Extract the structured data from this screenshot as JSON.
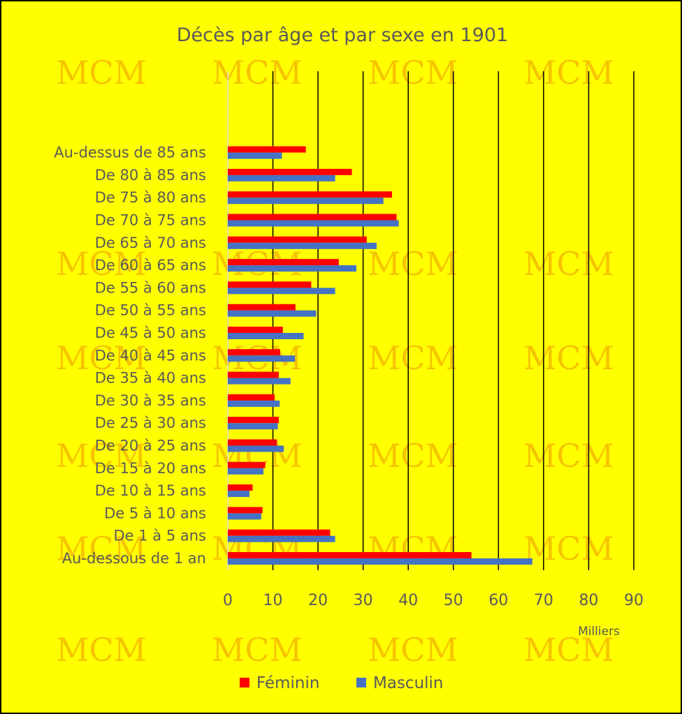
{
  "watermark": "MCM",
  "chart_data": {
    "type": "bar",
    "orientation": "horizontal",
    "title": "Décès par âge et par sexe en 1901",
    "xlabel": "Milliers",
    "xlim": [
      0,
      90
    ],
    "xticks": [
      0,
      10,
      20,
      30,
      40,
      50,
      60,
      70,
      80,
      90
    ],
    "grid": "vertical",
    "legend_position": "bottom",
    "categories": [
      "Au-dessous de 1 an",
      "De 1 à 5 ans",
      "De 5 à 10 ans",
      "De 10 à 15 ans",
      "De 15 à 20 ans",
      "De 20 à 25 ans",
      "De 25 à 30 ans",
      "De 30 à 35 ans",
      "De 35 à 40 ans",
      "De 40 à 45 ans",
      "De 45 à 50 ans",
      "De 50 à 55 ans",
      "De 55 à 60 ans",
      "De 60 à 65 ans",
      "De 65 à 70 ans",
      "De 70 à 75 ans",
      "De 75 à 80 ans",
      "De 80 à 85 ans",
      "Au-dessus de 85 ans"
    ],
    "series": [
      {
        "name": "Féminin",
        "color": "#ff0000",
        "values": [
          54,
          22.7,
          7.7,
          5.5,
          8.3,
          10.9,
          11.3,
          10.4,
          11.3,
          11.6,
          12.2,
          15.0,
          18.5,
          24.6,
          30.8,
          37.4,
          36.4,
          27.5,
          17.3
        ]
      },
      {
        "name": "Masculin",
        "color": "#4472c4",
        "values": [
          67.5,
          23.8,
          7.4,
          4.8,
          7.9,
          12.4,
          11.1,
          11.5,
          13.9,
          14.9,
          16.8,
          19.6,
          23.8,
          28.5,
          33.0,
          37.9,
          34.5,
          23.8,
          12.0
        ]
      }
    ]
  }
}
